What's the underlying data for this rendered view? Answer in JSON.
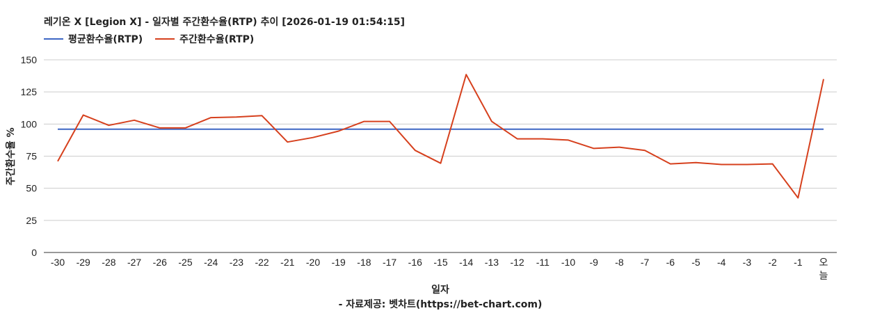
{
  "chart_data": {
    "type": "line",
    "title": "레기온 X [Legion X] - 일자별 주간환수율(RTP) 추이 [2026-01-19 01:54:15]",
    "xlabel": "일자",
    "ylabel": "주간환수율 %",
    "caption": "- 자료제공: 벳차트(https://bet-chart.com)",
    "ylim": [
      0,
      150
    ],
    "yticks": [
      "0",
      "25",
      "50",
      "75",
      "100",
      "125",
      "150"
    ],
    "grid": true,
    "legend_position": "top-left",
    "categories": [
      "-30",
      "-29",
      "-28",
      "-27",
      "-26",
      "-25",
      "-24",
      "-23",
      "-22",
      "-21",
      "-20",
      "-19",
      "-18",
      "-17",
      "-16",
      "-15",
      "-14",
      "-13",
      "-12",
      "-11",
      "-10",
      "-9",
      "-8",
      "-7",
      "-6",
      "-5",
      "-4",
      "-3",
      "-2",
      "-1",
      "오늘"
    ],
    "series": [
      {
        "name": "평균환수율(RTP)",
        "color": "#3d66c4",
        "values": [
          96,
          96,
          96,
          96,
          96,
          96,
          96,
          96,
          96,
          96,
          96,
          96,
          96,
          96,
          96,
          96,
          96,
          96,
          96,
          96,
          96,
          96,
          96,
          96,
          96,
          96,
          96,
          96,
          96,
          96,
          96
        ]
      },
      {
        "name": "주간환수율(RTP)",
        "color": "#d6401d",
        "values": [
          71,
          107,
          99,
          103,
          97,
          97,
          105,
          105.5,
          106.5,
          86,
          89.5,
          94.5,
          102,
          102,
          79.5,
          69.5,
          138.5,
          102,
          88.5,
          88.5,
          87.5,
          81,
          82,
          79.5,
          69,
          70,
          68.5,
          68.5,
          69,
          42.5,
          135
        ]
      }
    ]
  }
}
